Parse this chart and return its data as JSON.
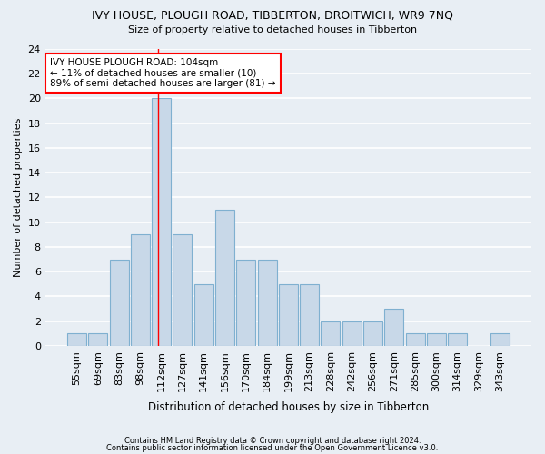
{
  "title": "IVY HOUSE, PLOUGH ROAD, TIBBERTON, DROITWICH, WR9 7NQ",
  "subtitle": "Size of property relative to detached houses in Tibberton",
  "xlabel": "Distribution of detached houses by size in Tibberton",
  "ylabel": "Number of detached properties",
  "bin_labels": [
    "55sqm",
    "69sqm",
    "83sqm",
    "98sqm",
    "112sqm",
    "127sqm",
    "141sqm",
    "156sqm",
    "170sqm",
    "184sqm",
    "199sqm",
    "213sqm",
    "228sqm",
    "242sqm",
    "256sqm",
    "271sqm",
    "285sqm",
    "300sqm",
    "314sqm",
    "329sqm",
    "343sqm"
  ],
  "bar_values": [
    1,
    1,
    7,
    9,
    20,
    9,
    5,
    11,
    7,
    7,
    5,
    5,
    2,
    2,
    2,
    3,
    1,
    1,
    1,
    0,
    1
  ],
  "bar_color": "#c8d8e8",
  "bar_edge_color": "#7fb0d0",
  "annotation_text": "IVY HOUSE PLOUGH ROAD: 104sqm\n← 11% of detached houses are smaller (10)\n89% of semi-detached houses are larger (81) →",
  "annotation_box_color": "white",
  "annotation_box_edge_color": "red",
  "vline_x_index": 3.85,
  "vline_color": "red",
  "ylim": [
    0,
    24
  ],
  "yticks": [
    0,
    2,
    4,
    6,
    8,
    10,
    12,
    14,
    16,
    18,
    20,
    22,
    24
  ],
  "footer_line1": "Contains HM Land Registry data © Crown copyright and database right 2024.",
  "footer_line2": "Contains public sector information licensed under the Open Government Licence v3.0.",
  "bg_color": "#e8eef4",
  "grid_color": "white"
}
